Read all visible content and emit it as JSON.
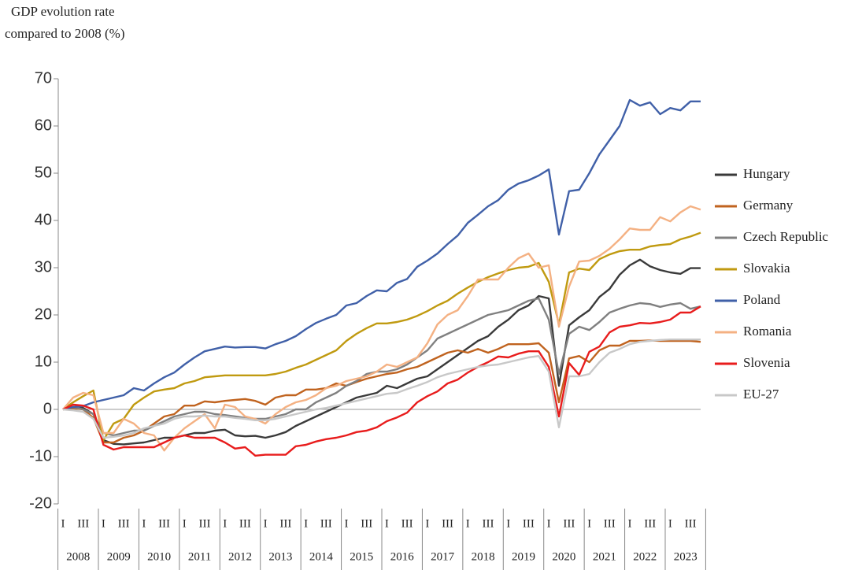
{
  "chart_data": {
    "type": "line",
    "title_lines": [
      "GDP evolution rate",
      "compared to 2008 (%)"
    ],
    "categories": [
      "I",
      null,
      "III",
      null,
      "I",
      null,
      "III",
      null,
      "I",
      null,
      "III",
      null,
      "I",
      null,
      "III",
      null,
      "I",
      null,
      "III",
      null,
      "I",
      null,
      "III",
      null,
      "I",
      null,
      "III",
      null,
      "I",
      null,
      "III",
      null,
      "I",
      null,
      "III",
      null,
      "I",
      null,
      "III",
      null,
      "I",
      null,
      "III",
      null,
      "I",
      null,
      "III",
      null,
      "I",
      null,
      "III",
      null,
      "I",
      null,
      "III",
      null,
      "I",
      null,
      "III",
      null,
      "I",
      null,
      "III",
      null
    ],
    "years": [
      "2008",
      "2009",
      "2010",
      "2011",
      "2012",
      "2013",
      "2014",
      "2015",
      "2016",
      "2017",
      "2018",
      "2019",
      "2020",
      "2021",
      "2022",
      "2023"
    ],
    "ylim": [
      -20,
      70
    ],
    "yticks": [
      -20,
      -10,
      0,
      10,
      20,
      30,
      40,
      50,
      60,
      70
    ],
    "grid": false,
    "legend": "right",
    "series": [
      {
        "name": "Hungary",
        "color": "#3a3a3a",
        "values": [
          0,
          0.5,
          0.3,
          -1,
          -6.5,
          -7.3,
          -7.4,
          -7.2,
          -7,
          -6.5,
          -6,
          -6,
          -5.5,
          -5,
          -5,
          -4.5,
          -4.3,
          -5.5,
          -5.7,
          -5.6,
          -6,
          -5.5,
          -4.8,
          -3.5,
          -2.5,
          -1.5,
          -0.5,
          0.5,
          1.5,
          2.5,
          3,
          3.5,
          5,
          4.5,
          5.5,
          6.5,
          7,
          8.5,
          10,
          11.5,
          13,
          14.5,
          15.5,
          17.5,
          19,
          21,
          22,
          24,
          23.5,
          5,
          17.8,
          19.5,
          21,
          23.8,
          25.5,
          28.5,
          30.5,
          31.7,
          30.3,
          29.5,
          29,
          28.7,
          29.9,
          29.9
        ]
      },
      {
        "name": "Germany",
        "color": "#c0631f",
        "values": [
          0,
          0.3,
          0,
          -1.8,
          -7,
          -7,
          -6,
          -5.5,
          -4.5,
          -3,
          -1.5,
          -1,
          0.8,
          0.8,
          1.7,
          1.5,
          1.8,
          2,
          2.2,
          1.8,
          1,
          2.5,
          3,
          3,
          4.2,
          4.2,
          4.5,
          5.5,
          5,
          5.8,
          6.5,
          7,
          7.5,
          7.8,
          8.5,
          9,
          10,
          11,
          12,
          12.5,
          12,
          12.8,
          12,
          12.8,
          13.8,
          13.8,
          13.8,
          14,
          12,
          1.5,
          10.8,
          11.3,
          10,
          12.5,
          13.5,
          13.5,
          14.5,
          14.5,
          14.6,
          14.5,
          14.5,
          14.5,
          14.5,
          14.3
        ]
      },
      {
        "name": "Czech Republic",
        "color": "#808080",
        "values": [
          0,
          0.5,
          0,
          -1,
          -5,
          -5.5,
          -5,
          -4.5,
          -4.5,
          -3.5,
          -2.5,
          -1.5,
          -1,
          -0.5,
          -0.5,
          -1,
          -1.2,
          -1.5,
          -1.8,
          -2,
          -2,
          -1.5,
          -1,
          0,
          0,
          1.5,
          2.5,
          3.5,
          5,
          6,
          7.5,
          8,
          8,
          8.5,
          9.5,
          11,
          12.5,
          15,
          16,
          17,
          18,
          19,
          20,
          20.5,
          21,
          22,
          23,
          23.5,
          19,
          7.5,
          16,
          17.5,
          16.8,
          18.5,
          20.5,
          21.3,
          22,
          22.5,
          22.3,
          21.7,
          22.2,
          22.5,
          21.3,
          21.8
        ]
      },
      {
        "name": "Slovakia",
        "color": "#c09a10",
        "values": [
          0,
          1.5,
          2.8,
          4,
          -6.5,
          -3,
          -2,
          1,
          2.5,
          3.8,
          4.2,
          4.5,
          5.5,
          6,
          6.8,
          7,
          7.2,
          7.2,
          7.2,
          7.2,
          7.2,
          7.5,
          8,
          8.8,
          9.5,
          10.5,
          11.5,
          12.5,
          14.5,
          16,
          17.2,
          18.2,
          18.2,
          18.5,
          19,
          19.8,
          20.8,
          22,
          23,
          24.5,
          25.8,
          27,
          28,
          28.8,
          29.5,
          30,
          30.2,
          31,
          27,
          18,
          29,
          29.8,
          29.5,
          31.8,
          32.8,
          33.5,
          33.8,
          33.8,
          34.5,
          34.8,
          35,
          36,
          36.6,
          37.4
        ]
      },
      {
        "name": "Poland",
        "color": "#4060a8",
        "values": [
          0,
          0.5,
          0.7,
          1.5,
          2,
          2.5,
          3,
          4.5,
          4,
          5.5,
          6.8,
          7.8,
          9.5,
          11,
          12.3,
          12.8,
          13.3,
          13.1,
          13.2,
          13.2,
          12.9,
          13.8,
          14.5,
          15.5,
          17,
          18.3,
          19.2,
          20,
          22,
          22.5,
          24,
          25.2,
          25,
          26.8,
          27.6,
          30.2,
          31.5,
          33,
          35,
          36.8,
          39.5,
          41.2,
          43,
          44.3,
          46.5,
          47.8,
          48.5,
          49.5,
          50.8,
          37,
          46.2,
          46.5,
          50,
          54,
          57,
          60,
          65.5,
          64.3,
          65,
          62.5,
          63.8,
          63.3,
          65.2,
          65.2
        ]
      },
      {
        "name": "Romania",
        "color": "#f4b183",
        "values": [
          0,
          2.5,
          3.5,
          3,
          -5,
          -5,
          -2,
          -3,
          -5,
          -5.5,
          -8.7,
          -6,
          -4,
          -2.5,
          -1,
          -4,
          1,
          0.5,
          -1.5,
          -2,
          -3,
          -1,
          0.5,
          1.5,
          2,
          3,
          4.5,
          5,
          6,
          6.5,
          7,
          8,
          9.5,
          9,
          10,
          11,
          14,
          18,
          20,
          21,
          24,
          27.5,
          27.5,
          27.5,
          30,
          32,
          33,
          30,
          30.5,
          17.5,
          26,
          31.3,
          31.5,
          32.5,
          34,
          36,
          38.3,
          38,
          38,
          40.7,
          39.8,
          41.7,
          43,
          42.3
        ]
      },
      {
        "name": "Slovenia",
        "color": "#e81c1c",
        "values": [
          0,
          1,
          0.8,
          0,
          -7.5,
          -8.5,
          -8,
          -8,
          -8,
          -8,
          -7,
          -6,
          -5.5,
          -6,
          -6,
          -6,
          -7,
          -8.3,
          -8,
          -9.8,
          -9.6,
          -9.6,
          -9.6,
          -7.8,
          -7.5,
          -6.8,
          -6.3,
          -6,
          -5.5,
          -4.8,
          -4.5,
          -3.8,
          -2.5,
          -1.7,
          -0.7,
          1.5,
          2.8,
          3.8,
          5.5,
          6.3,
          7.8,
          9,
          10,
          11.2,
          11,
          11.8,
          12.3,
          12.3,
          9,
          -1.5,
          9.8,
          7.3,
          12.2,
          13.3,
          16.3,
          17.5,
          17.8,
          18.3,
          18.2,
          18.5,
          19,
          20.5,
          20.5,
          21.8
        ]
      },
      {
        "name": "EU-27",
        "color": "#c8c8c8",
        "values": [
          0,
          -0.2,
          -0.5,
          -2,
          -6,
          -5.8,
          -5.5,
          -5,
          -4,
          -3.5,
          -3,
          -2,
          -1.5,
          -1.5,
          -1.3,
          -1.5,
          -1.5,
          -1.8,
          -2,
          -2.3,
          -2.3,
          -2,
          -1.5,
          -1,
          -0.5,
          0,
          0.3,
          0.8,
          1.3,
          1.8,
          2.3,
          2.8,
          3.3,
          3.5,
          4.3,
          5,
          5.8,
          6.8,
          7.5,
          8,
          8.5,
          9,
          9.3,
          9.5,
          10,
          10.5,
          11,
          11.3,
          8,
          -3.8,
          7,
          7,
          7.5,
          10,
          12,
          12.8,
          13.8,
          14.3,
          14.5,
          14.7,
          14.8,
          14.8,
          14.8,
          14.8
        ]
      }
    ]
  }
}
